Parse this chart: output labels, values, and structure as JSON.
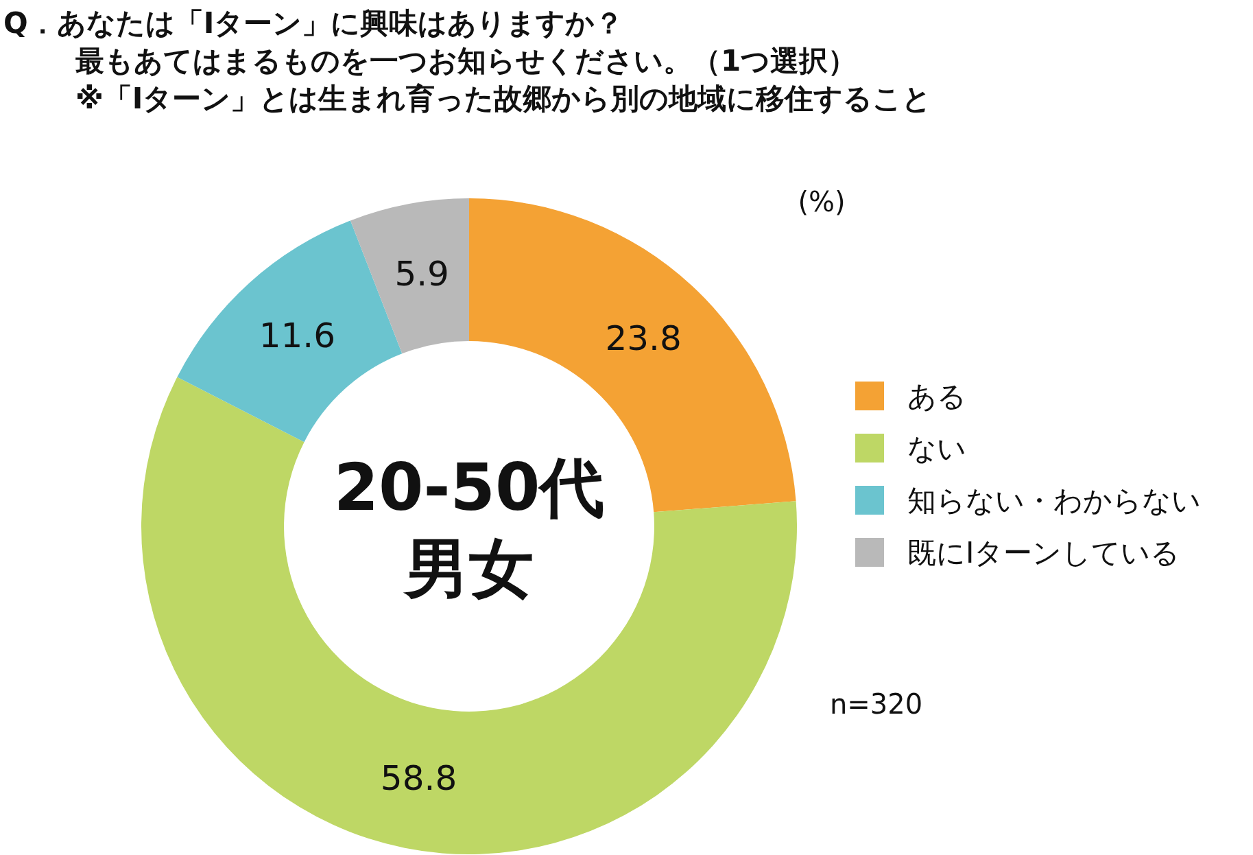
{
  "chart_data": {
    "type": "donut",
    "title": "Q．あなたは「Iターン」に興味はありますか？",
    "subtitle": "最もあてはまるものを一つお知らせください。（1つ選択）",
    "categories": [
      "ある",
      "ない",
      "知らない・わからない",
      "既にIターンしている"
    ],
    "values": [
      23.8,
      58.8,
      11.6,
      5.9
    ],
    "colors": [
      "#f4a234",
      "#bed765",
      "#6bc4cf",
      "#b9b9b9"
    ],
    "data_labels": true,
    "legend": "right",
    "annotations": [
      "※「Iターン」とは生まれ育った故郷から別の地域に移住すること",
      "20-50代",
      "男女",
      "(%)",
      "n=320"
    ]
  }
}
